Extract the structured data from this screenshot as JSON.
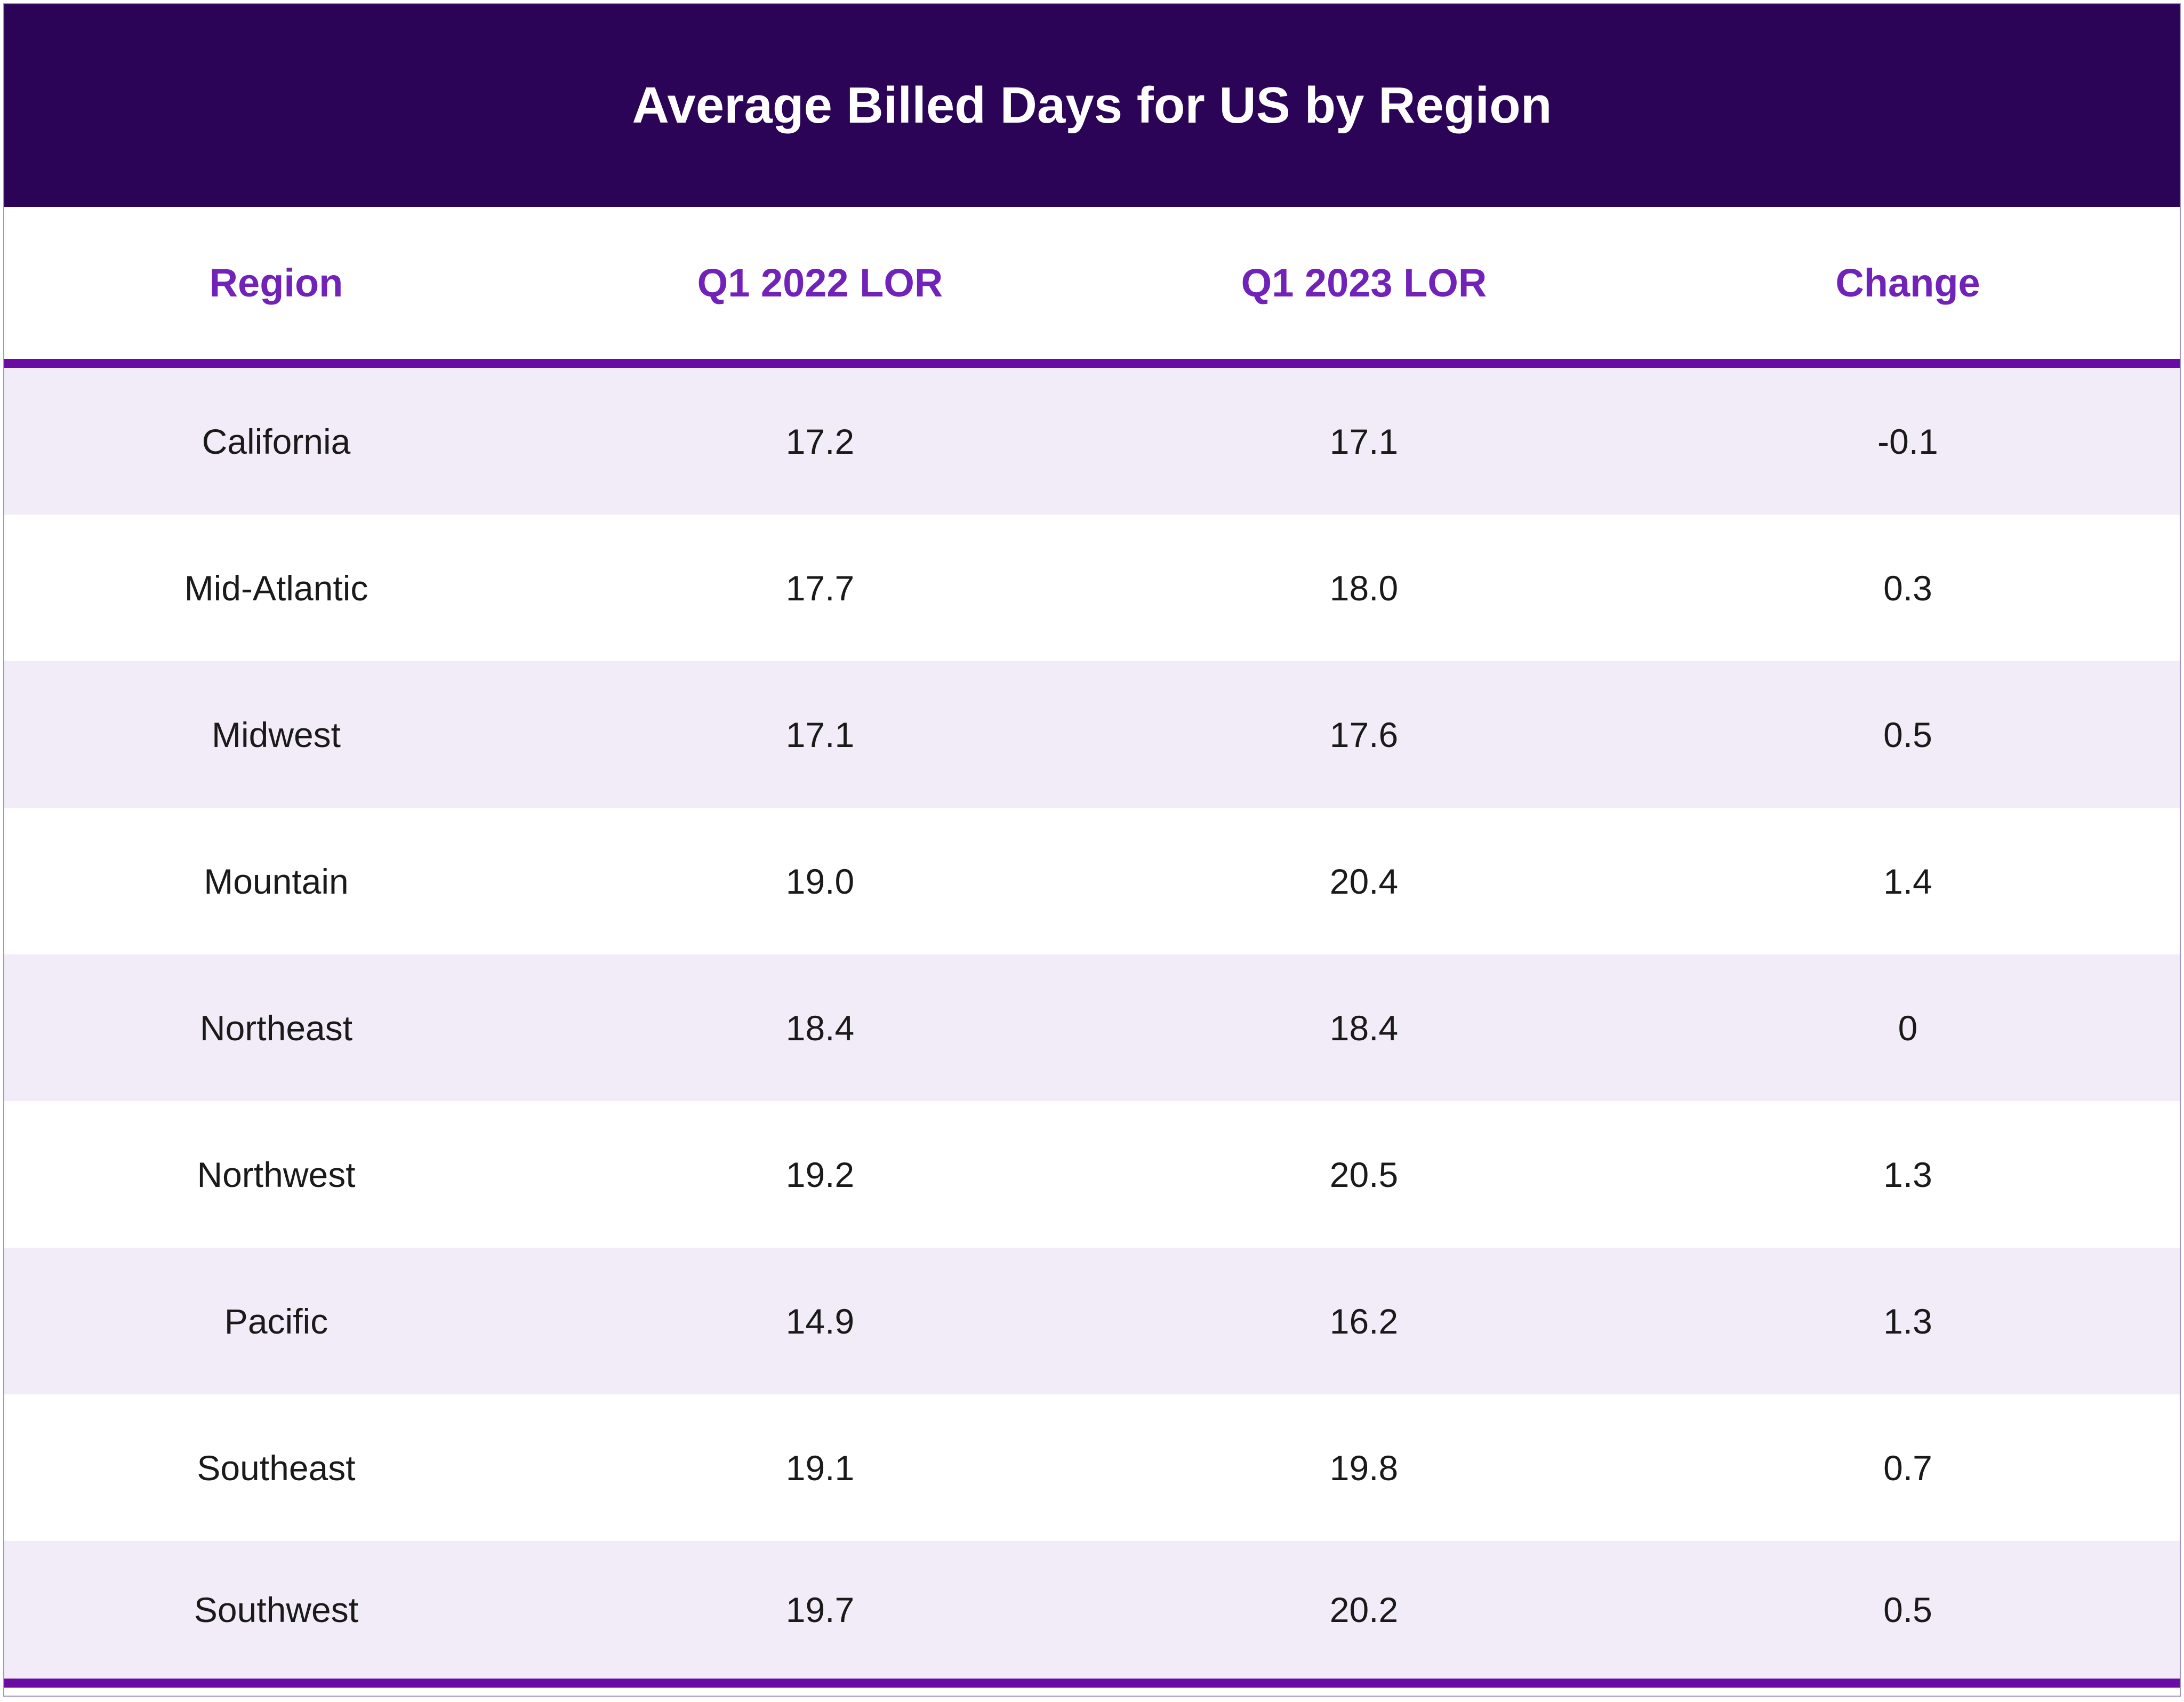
{
  "title": "Average Billed Days for US by Region",
  "columns": [
    "Region",
    "Q1 2022 LOR",
    "Q1 2023 LOR",
    "Change"
  ],
  "rows": [
    {
      "region": "California",
      "q1_2022": "17.2",
      "q1_2023": "17.1",
      "change": "-0.1"
    },
    {
      "region": "Mid-Atlantic",
      "q1_2022": "17.7",
      "q1_2023": "18.0",
      "change": "0.3"
    },
    {
      "region": "Midwest",
      "q1_2022": "17.1",
      "q1_2023": "17.6",
      "change": "0.5"
    },
    {
      "region": "Mountain",
      "q1_2022": "19.0",
      "q1_2023": "20.4",
      "change": "1.4"
    },
    {
      "region": "Northeast",
      "q1_2022": "18.4",
      "q1_2023": "18.4",
      "change": "0"
    },
    {
      "region": "Northwest",
      "q1_2022": "19.2",
      "q1_2023": "20.5",
      "change": "1.3"
    },
    {
      "region": "Pacific",
      "q1_2022": "14.9",
      "q1_2023": "16.2",
      "change": "1.3"
    },
    {
      "region": "Southeast",
      "q1_2022": "19.1",
      "q1_2023": "19.8",
      "change": "0.7"
    },
    {
      "region": "Southwest",
      "q1_2022": "19.7",
      "q1_2023": "20.2",
      "change": "0.5"
    }
  ],
  "colors": {
    "title_bar_bg": "#2B0357",
    "title_text": "#FFFFFF",
    "header_text": "#7122B8",
    "rule_purple": "#6A0BA6",
    "row_stripe": "#F1ECF7",
    "cell_text": "#1A1A1A"
  },
  "chart_data": {
    "type": "table",
    "title": "Average Billed Days for US by Region",
    "columns": [
      "Region",
      "Q1 2022 LOR",
      "Q1 2023 LOR",
      "Change"
    ],
    "rows": [
      [
        "California",
        17.2,
        17.1,
        -0.1
      ],
      [
        "Mid-Atlantic",
        17.7,
        18.0,
        0.3
      ],
      [
        "Midwest",
        17.1,
        17.6,
        0.5
      ],
      [
        "Mountain",
        19.0,
        20.4,
        1.4
      ],
      [
        "Northeast",
        18.4,
        18.4,
        0
      ],
      [
        "Northwest",
        19.2,
        20.5,
        1.3
      ],
      [
        "Pacific",
        14.9,
        16.2,
        1.3
      ],
      [
        "Southeast",
        19.1,
        19.8,
        0.7
      ],
      [
        "Southwest",
        19.7,
        20.2,
        0.5
      ]
    ],
    "layout": {
      "striped_rows": true,
      "stripe_on": "odd",
      "header_rule": true,
      "footer_rule": true
    }
  }
}
